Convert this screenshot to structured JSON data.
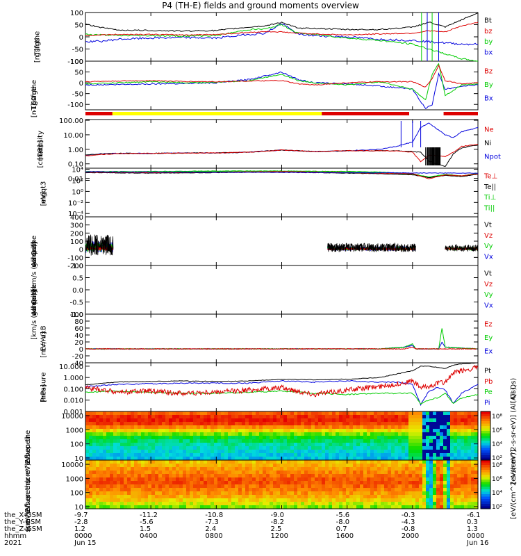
{
  "title": "P4 (TH-E) fields and ground moments overview",
  "colors": {
    "black": "#000000",
    "red": "#dd0000",
    "green": "#00cc00",
    "blue": "#0000dd",
    "yellow": "#ffff00"
  },
  "panels": [
    {
      "id": "fgs",
      "top": 18,
      "bottom": 88,
      "log": false,
      "ymin": -100,
      "ymax": 100,
      "yticks": [
        "100",
        "50",
        "0",
        "-50",
        "-100"
      ],
      "ytickvals": [
        100,
        50,
        0,
        -50,
        -100
      ],
      "ylabel": [
        "the",
        "fgs",
        "gsm",
        "[nT]"
      ],
      "legend": [
        {
          "t": "Bt",
          "c": "black"
        },
        {
          "t": "bz",
          "c": "red"
        },
        {
          "t": "by",
          "c": "green"
        },
        {
          "t": "bx",
          "c": "blue"
        }
      ]
    },
    {
      "id": "fge",
      "top": 88,
      "bottom": 158,
      "log": false,
      "ymin": -125,
      "ymax": 100,
      "yticks": [
        "100",
        "50",
        "0",
        "-50",
        "-100"
      ],
      "ytickvals": [
        100,
        50,
        0,
        -50,
        -100
      ],
      "ylabel": [
        "the",
        "fge",
        "gsm",
        "-160",
        "[nT]"
      ],
      "legend": [
        {
          "t": "Bz",
          "c": "red"
        },
        {
          "t": "By",
          "c": "green"
        },
        {
          "t": "Bx",
          "c": "blue"
        }
      ]
    },
    {
      "id": "dens",
      "top": 172,
      "bottom": 242,
      "log": true,
      "ymin": -1.3,
      "ymax": 2.05,
      "yticks": [
        "100.00",
        "10.00",
        "1.00",
        "0.10",
        "0.01"
      ],
      "ytickvals": [
        2,
        1,
        0,
        -1,
        -2
      ],
      "ylabel": [
        "Density",
        "[1/cc]",
        "[cm-3]"
      ],
      "legend": [
        {
          "t": "Ne",
          "c": "red"
        },
        {
          "t": "Ni",
          "c": "black"
        },
        {
          "t": "Npot",
          "c": "blue"
        }
      ]
    },
    {
      "id": "temp",
      "top": 242,
      "bottom": 312,
      "log": true,
      "ymin": -4.6,
      "ymax": 4.2,
      "yticks": [
        "10⁴",
        "10²",
        "10⁰",
        "10⁻²",
        "10⁻⁴"
      ],
      "ytickvals": [
        4,
        2,
        0,
        -2,
        -4
      ],
      "ylabel": [
        "mgqt3",
        "[eV]"
      ],
      "legend": [
        {
          "t": "Te⊥",
          "c": "red"
        },
        {
          "t": "Te||",
          "c": "black"
        },
        {
          "t": "Ti⊥",
          "c": "green"
        },
        {
          "t": "Ti||",
          "c": "green"
        }
      ]
    },
    {
      "id": "peirv",
      "top": 312,
      "bottom": 382,
      "log": false,
      "ymin": -200,
      "ymax": 400,
      "yticks": [
        "400",
        "300",
        "200",
        "100",
        "0",
        "-100",
        "-200"
      ],
      "ytickvals": [
        400,
        300,
        200,
        100,
        0,
        -100,
        -200
      ],
      "ylabel": [
        "the",
        "peir",
        "velocity",
        "gsm",
        "[km/s (All Qs)]"
      ],
      "legend": [
        {
          "t": "Vt",
          "c": "black"
        },
        {
          "t": "Vz",
          "c": "red"
        },
        {
          "t": "Vy",
          "c": "green"
        },
        {
          "t": "Vx",
          "c": "blue"
        }
      ]
    },
    {
      "id": "peerv",
      "top": 382,
      "bottom": 452,
      "log": false,
      "ymin": -1,
      "ymax": 1,
      "yticks": [
        "1.0",
        "0.5",
        "0.0",
        "-0.5",
        "-1.0"
      ],
      "ytickvals": [
        1,
        0.5,
        0,
        -0.5,
        -1
      ],
      "ylabel": [
        "the",
        "peer",
        "velocity",
        "gsm",
        "[km/s (All Qs)]"
      ],
      "legend": [
        {
          "t": "Vt",
          "c": "black"
        },
        {
          "t": "Vz",
          "c": "red"
        },
        {
          "t": "Vy",
          "c": "green"
        },
        {
          "t": "Vx",
          "c": "blue"
        }
      ]
    },
    {
      "id": "efield",
      "top": 452,
      "bottom": 522,
      "log": false,
      "ymin": -40,
      "ymax": 100,
      "yticks": [
        "100",
        "80",
        "60",
        "40",
        "20",
        "0",
        "-20",
        "-40"
      ],
      "ytickvals": [
        100,
        80,
        60,
        40,
        20,
        0,
        -20,
        -40
      ],
      "ylabel": [
        "E=-VxB",
        "[mV/m]"
      ],
      "legend": [
        {
          "t": "Ez",
          "c": "red"
        },
        {
          "t": "Ey",
          "c": "green"
        },
        {
          "t": "Ex",
          "c": "blue"
        }
      ]
    },
    {
      "id": "press",
      "top": 522,
      "bottom": 592,
      "log": true,
      "ymin": -3,
      "ymax": 1.3,
      "yticks": [
        "10.000",
        "1.000",
        "0.100",
        "0.010",
        "0.001"
      ],
      "ytickvals": [
        1,
        0,
        -1,
        -2,
        -3
      ],
      "ylabel": [
        "Pressure",
        "[nPa]"
      ],
      "legend": [
        {
          "t": "Pt",
          "c": "black"
        },
        {
          "t": "Pb",
          "c": "red"
        },
        {
          "t": "Pe",
          "c": "green"
        },
        {
          "t": "Pi",
          "c": "blue"
        }
      ],
      "legend_side": "(All Qs)"
    },
    {
      "id": "peirspec",
      "top": 592,
      "bottom": 662,
      "log": true,
      "spectrogram": true,
      "ymin": 0.85,
      "ymax": 4.3,
      "yticks": [
        "10000",
        "1000",
        "100",
        "10"
      ],
      "ytickvals": [
        4,
        3,
        2,
        1
      ],
      "ylabel": [
        "the",
        "peir",
        "en",
        "eflux",
        "eV",
        "(cm^2-s-",
        "sr-eV)"
      ],
      "colorbar": [
        "10⁸",
        "10⁶",
        "10⁴",
        "10²"
      ],
      "colorbar_label": "[eV/(cm^2-s-sr-eV)] (All Qs)"
    },
    {
      "id": "peerspec",
      "top": 662,
      "bottom": 732,
      "log": true,
      "spectrogram": true,
      "ymin": 0.85,
      "ymax": 4.3,
      "yticks": [
        "10000",
        "1000",
        "100",
        "10"
      ],
      "ytickvals": [
        4,
        3,
        2,
        1
      ],
      "ylabel": [
        "the",
        "peer",
        "en",
        "eflux",
        "eV",
        "(cm^2-s-",
        "sr-eV)"
      ],
      "colorbar": [
        "10⁸",
        "10⁶",
        "10⁴",
        "10²"
      ],
      "colorbar_label": "[eV/(cm^2-s-sr-eV)]"
    }
  ],
  "bar_colors": [
    {
      "from": 0,
      "to": 1.65,
      "color": "red"
    },
    {
      "from": 1.65,
      "to": 14.45,
      "color": "yellow"
    },
    {
      "from": 14.45,
      "to": 19.8,
      "color": "red"
    },
    {
      "from": 19.8,
      "to": 21.9,
      "color": "white"
    },
    {
      "from": 21.9,
      "to": 24,
      "color": "red"
    }
  ],
  "x_rows": [
    {
      "label": "the_X-GSM",
      "values": [
        "-9.7",
        "-11.2",
        "-10.8",
        "-9.0",
        "-5.6",
        "-0.3",
        "-6.1"
      ]
    },
    {
      "label": "the_Y-GSM",
      "values": [
        "-2.8",
        "-5.6",
        "-7.3",
        "-8.2",
        "-8.0",
        "-4.3",
        "0.3"
      ]
    },
    {
      "label": "the_Z-GSM",
      "values": [
        "1.2",
        "1.5",
        "2.4",
        "2.5",
        "0.7",
        "-0.8",
        "1.3"
      ]
    },
    {
      "label": "hhmm",
      "values": [
        "0000",
        "0400",
        "0800",
        "1200",
        "1600",
        "2000",
        "0000"
      ]
    },
    {
      "label": "2021",
      "values": [
        "Jun 15",
        "",
        "",
        "",
        "",
        "",
        "Jun 16"
      ]
    }
  ],
  "chart_data": {
    "type": "line",
    "title": "P4 (TH-E) fields and ground moments overview",
    "x_axis": "hhmm",
    "x_ticks": [
      "0000",
      "0400",
      "0800",
      "1200",
      "1600",
      "2000",
      "0000"
    ],
    "x_range_hours": [
      0,
      24
    ],
    "dates": [
      "Jun 15",
      "Jun 16"
    ],
    "series": {
      "fgs": {
        "x": [
          0,
          1,
          2,
          4,
          6,
          8,
          10,
          11,
          12,
          13,
          14,
          16,
          18,
          20,
          21,
          22,
          23,
          24
        ],
        "Bt": [
          52,
          38,
          28,
          26,
          24,
          26,
          40,
          45,
          60,
          35,
          35,
          30,
          30,
          40,
          60,
          40,
          70,
          98
        ],
        "bz": [
          5,
          8,
          10,
          10,
          8,
          10,
          18,
          22,
          20,
          15,
          12,
          8,
          12,
          15,
          25,
          20,
          45,
          60
        ],
        "by": [
          10,
          8,
          5,
          5,
          3,
          5,
          30,
          32,
          50,
          15,
          10,
          -5,
          -15,
          -30,
          -50,
          -70,
          -90,
          -100
        ],
        "bx": [
          -20,
          -18,
          -10,
          -5,
          -3,
          -5,
          10,
          15,
          55,
          10,
          5,
          0,
          -10,
          -15,
          -20,
          -25,
          -30,
          -30
        ]
      },
      "fge": {
        "x": [
          0,
          2,
          4,
          6,
          8,
          10,
          12,
          13,
          14,
          16,
          18,
          20,
          20.8,
          21.2,
          21.6,
          22,
          23,
          24
        ],
        "Bz": [
          5,
          8,
          10,
          6,
          5,
          8,
          10,
          -5,
          -10,
          0,
          5,
          5,
          -20,
          20,
          80,
          10,
          -5,
          0
        ],
        "By": [
          -5,
          0,
          5,
          0,
          2,
          10,
          40,
          10,
          0,
          -10,
          5,
          -30,
          -80,
          40,
          90,
          -60,
          -10,
          -5
        ],
        "Bx": [
          -10,
          -8,
          -5,
          -3,
          0,
          15,
          50,
          15,
          0,
          -5,
          -15,
          -30,
          -120,
          -100,
          40,
          -30,
          -15,
          -10
        ]
      },
      "dens_log10": {
        "x": [
          0,
          1,
          2,
          4,
          6,
          8,
          10,
          12,
          14,
          16,
          18,
          19,
          20,
          20.5,
          21,
          22,
          22.5,
          23,
          24
        ],
        "Ne": [
          -0.45,
          -0.35,
          -0.3,
          -0.28,
          -0.25,
          -0.25,
          -0.2,
          -0.05,
          -0.15,
          -0.1,
          -0.1,
          -0.1,
          -0.2,
          -0.85,
          -0.4,
          -0.5,
          -0.2,
          0.2,
          0.35
        ],
        "Ni": [
          -0.4,
          -0.32,
          -0.28,
          -0.28,
          -0.25,
          -0.25,
          -0.2,
          -0.05,
          -0.15,
          -0.1,
          -0.1,
          -0.1,
          -0.15,
          -0.2,
          -0.8,
          -1.2,
          -0.3,
          0.1,
          0.3
        ],
        "Npot": [
          -0.4,
          -0.3,
          -0.28,
          -0.28,
          -0.25,
          -0.25,
          -0.2,
          -0.05,
          -0.15,
          -0.1,
          0.0,
          0.2,
          0.5,
          1.5,
          1.8,
          1.0,
          0.8,
          1.2,
          1.5
        ]
      },
      "temp_log10": {
        "x": [
          0,
          4,
          8,
          12,
          16,
          18,
          20,
          21,
          22,
          23,
          24
        ],
        "Te_perp": [
          3.5,
          3.4,
          3.5,
          3.6,
          3.4,
          3.3,
          3.2,
          2.3,
          3.0,
          2.8,
          3.2
        ],
        "Te_par": [
          3.4,
          3.3,
          3.4,
          3.5,
          3.3,
          3.2,
          3.0,
          2.5,
          2.9,
          2.7,
          3.1
        ],
        "Ti_perp": [
          3.6,
          3.6,
          3.7,
          3.7,
          3.6,
          3.5,
          3.2,
          2.6,
          3.1,
          2.8,
          3.3
        ],
        "Ti_par": [
          3.5,
          3.5,
          3.6,
          3.6,
          3.5,
          3.4,
          3.1,
          2.5,
          3.0,
          2.7,
          3.2
        ]
      },
      "efield": {
        "x": [
          0,
          1.7,
          14.8,
          18,
          19.5,
          20,
          20.2,
          21.6,
          21.8,
          22,
          23.9
        ],
        "Ez": [
          0,
          0,
          0,
          0,
          0,
          5,
          0,
          0,
          0,
          0,
          0
        ],
        "Ey": [
          0,
          0,
          0,
          0,
          5,
          15,
          0,
          0,
          60,
          5,
          0
        ],
        "Ex": [
          0,
          0,
          0,
          0,
          5,
          10,
          0,
          0,
          20,
          5,
          0
        ]
      },
      "pressure_log10": {
        "x": [
          0,
          2,
          4,
          6,
          8,
          10,
          12,
          14,
          16,
          18,
          19,
          20,
          20.5,
          21,
          21.5,
          22,
          22.5,
          23,
          24
        ],
        "Pt": [
          -0.65,
          -0.4,
          -0.35,
          -0.3,
          -0.35,
          -0.3,
          -0.15,
          -0.2,
          -0.15,
          0,
          0.3,
          0.6,
          1.0,
          1.0,
          0.9,
          0.8,
          1.1,
          1.2,
          1.3
        ],
        "Pb": [
          -0.9,
          -1.3,
          -1.2,
          -1.4,
          -1.3,
          -1.1,
          -0.9,
          -1.5,
          -1.1,
          -0.8,
          -0.6,
          -0.3,
          -0.9,
          -0.8,
          -0.5,
          -0.4,
          0.4,
          0.6,
          0.9
        ],
        "Pe": [
          -1.3,
          -1.2,
          -1.3,
          -1.4,
          -1.4,
          -1.3,
          -1.2,
          -1.4,
          -1.5,
          -1.4,
          -1.4,
          -1.4,
          -2.3,
          -2.0,
          -1.8,
          -1.4,
          -2.3,
          -1.8,
          -1.5
        ],
        "Pi": [
          -0.8,
          -0.6,
          -0.55,
          -0.5,
          -0.5,
          -0.5,
          -0.3,
          -0.4,
          -0.3,
          -0.4,
          -0.4,
          -0.6,
          -2.4,
          -1.2,
          -0.9,
          -1.1,
          -2.3,
          -1.4,
          -0.6
        ]
      }
    },
    "ylim": {
      "fgs": [
        -100,
        100
      ],
      "fge": [
        -125,
        100
      ],
      "peir_velocity": [
        -200,
        400
      ],
      "peer_velocity": [
        -1,
        1
      ],
      "efield": [
        -40,
        100
      ]
    }
  }
}
